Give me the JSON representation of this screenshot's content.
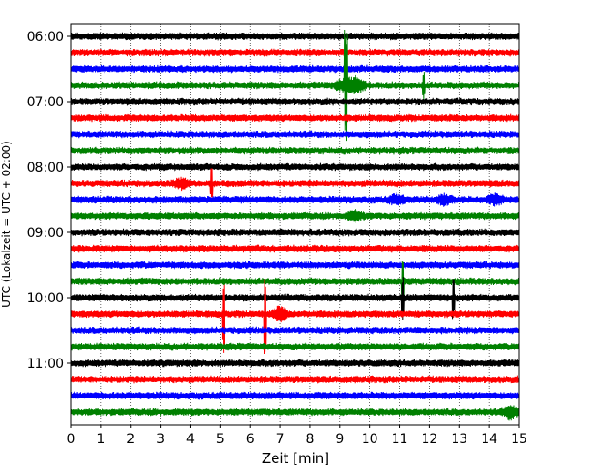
{
  "chart_data": {
    "type": "line",
    "title": "",
    "xlabel": "Zeit  [min]",
    "ylabel": "UTC (Lokalzeit = UTC + 02:00)",
    "xlim": [
      0,
      15
    ],
    "x_ticks": [
      "0",
      "1",
      "2",
      "3",
      "4",
      "5",
      "6",
      "7",
      "8",
      "9",
      "10",
      "11",
      "12",
      "13",
      "14",
      "15"
    ],
    "y_tick_labels": [
      "06:00",
      "07:00",
      "08:00",
      "09:00",
      "10:00",
      "11:00"
    ],
    "grid": "vertical dotted lines every minute",
    "legend": "none",
    "trace_colors": [
      "#000000",
      "#ff0000",
      "#0000ff",
      "#008000"
    ],
    "trace_start_times": [
      "06:00",
      "06:15",
      "06:30",
      "06:45",
      "07:00",
      "07:15",
      "07:30",
      "07:45",
      "08:00",
      "08:15",
      "08:30",
      "08:45",
      "09:00",
      "09:15",
      "09:30",
      "09:45",
      "10:00",
      "10:15",
      "10:30",
      "10:45",
      "11:00",
      "11:15",
      "11:30",
      "11:45"
    ],
    "events": [
      {
        "trace": "06:45",
        "x": 9.2,
        "amplitude": 4.5,
        "kind": "spike-burst"
      },
      {
        "trace": "06:45",
        "x": 9.6,
        "amplitude": 1.5,
        "kind": "burst"
      },
      {
        "trace": "06:45",
        "x": 11.8,
        "amplitude": 0.8,
        "kind": "spike"
      },
      {
        "trace": "08:15",
        "x": 3.7,
        "amplitude": 0.9,
        "kind": "burst"
      },
      {
        "trace": "08:15",
        "x": 4.7,
        "amplitude": 1.0,
        "kind": "spike"
      },
      {
        "trace": "08:30",
        "x": 10.9,
        "amplitude": 0.9,
        "kind": "burst"
      },
      {
        "trace": "08:30",
        "x": 12.5,
        "amplitude": 0.9,
        "kind": "burst"
      },
      {
        "trace": "08:30",
        "x": 14.2,
        "amplitude": 0.9,
        "kind": "burst"
      },
      {
        "trace": "08:45",
        "x": 9.5,
        "amplitude": 0.9,
        "kind": "burst"
      },
      {
        "trace": "09:45",
        "x": 11.1,
        "amplitude": 1.5,
        "kind": "spike"
      },
      {
        "trace": "10:00",
        "x": 11.1,
        "amplitude": 1.3,
        "kind": "spike"
      },
      {
        "trace": "10:00",
        "x": 12.8,
        "amplitude": 1.3,
        "kind": "spike"
      },
      {
        "trace": "10:15",
        "x": 5.1,
        "amplitude": 2.5,
        "kind": "spike"
      },
      {
        "trace": "10:15",
        "x": 6.5,
        "amplitude": 2.5,
        "kind": "spike"
      },
      {
        "trace": "10:15",
        "x": 7.0,
        "amplitude": 1.3,
        "kind": "burst"
      },
      {
        "trace": "11:45",
        "x": 14.7,
        "amplitude": 1.2,
        "kind": "burst"
      }
    ]
  }
}
